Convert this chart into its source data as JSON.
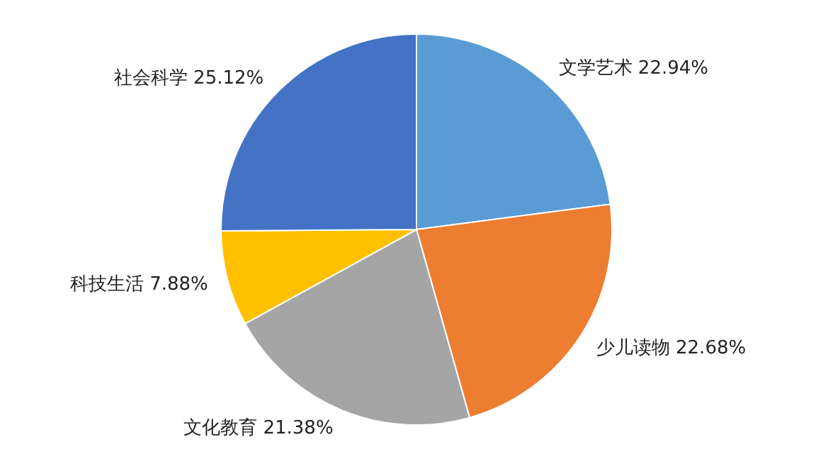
{
  "chart_data": {
    "type": "pie",
    "categories": [
      "文学艺术",
      "少儿读物",
      "文化教育",
      "科技生活",
      "社会科学"
    ],
    "values": [
      22.94,
      22.68,
      21.38,
      7.88,
      25.12
    ],
    "colors": [
      "#5b9bd5",
      "#ed7d31",
      "#a5a5a5",
      "#ffc000",
      "#4472c4"
    ],
    "value_labels": [
      "22.94%",
      "22.68%",
      "21.38%",
      "7.88%",
      "25.12%"
    ],
    "legend": false
  }
}
